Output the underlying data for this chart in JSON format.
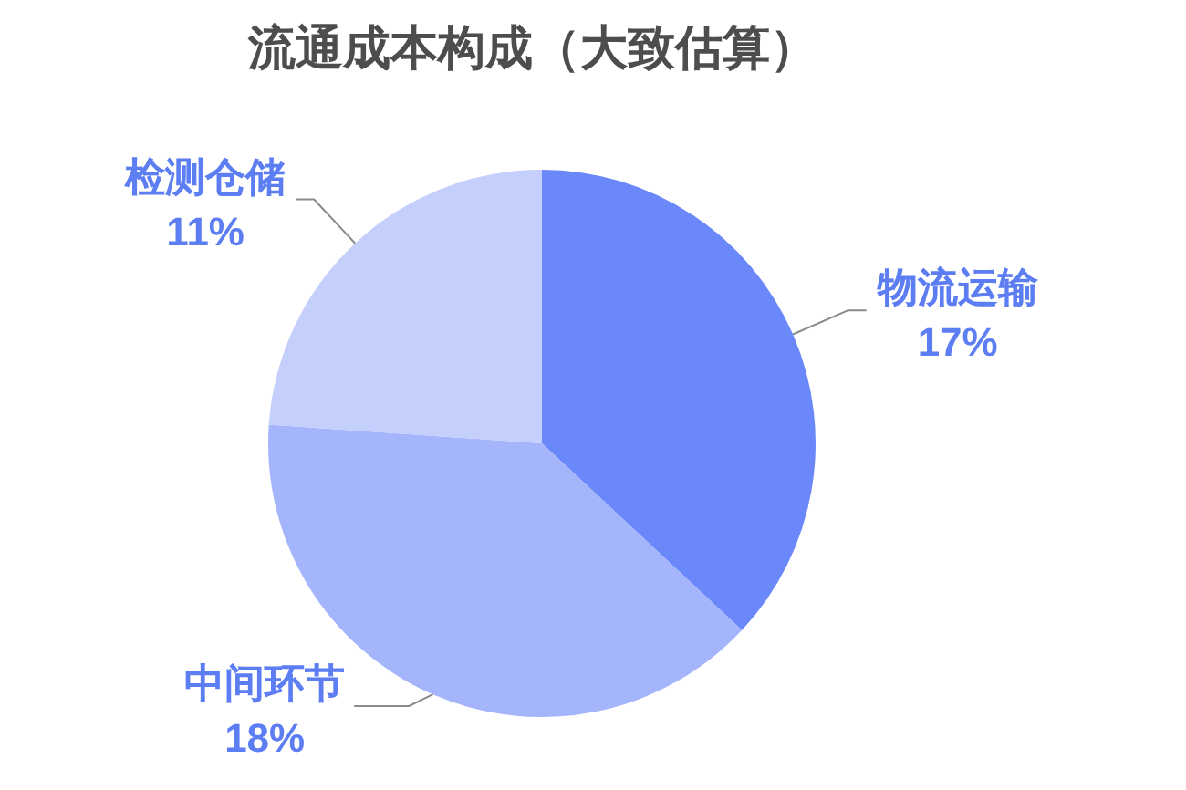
{
  "chart_data": {
    "type": "pie",
    "title": "流通成本构成（大致估算）",
    "categories": [
      "物流运输",
      "中间环节",
      "检测仓储"
    ],
    "values": [
      17,
      18,
      11
    ],
    "value_labels": [
      "17%",
      "18%",
      "11%"
    ],
    "colors": [
      "#6a88fa",
      "#a4b5fb",
      "#c4cffc"
    ]
  }
}
